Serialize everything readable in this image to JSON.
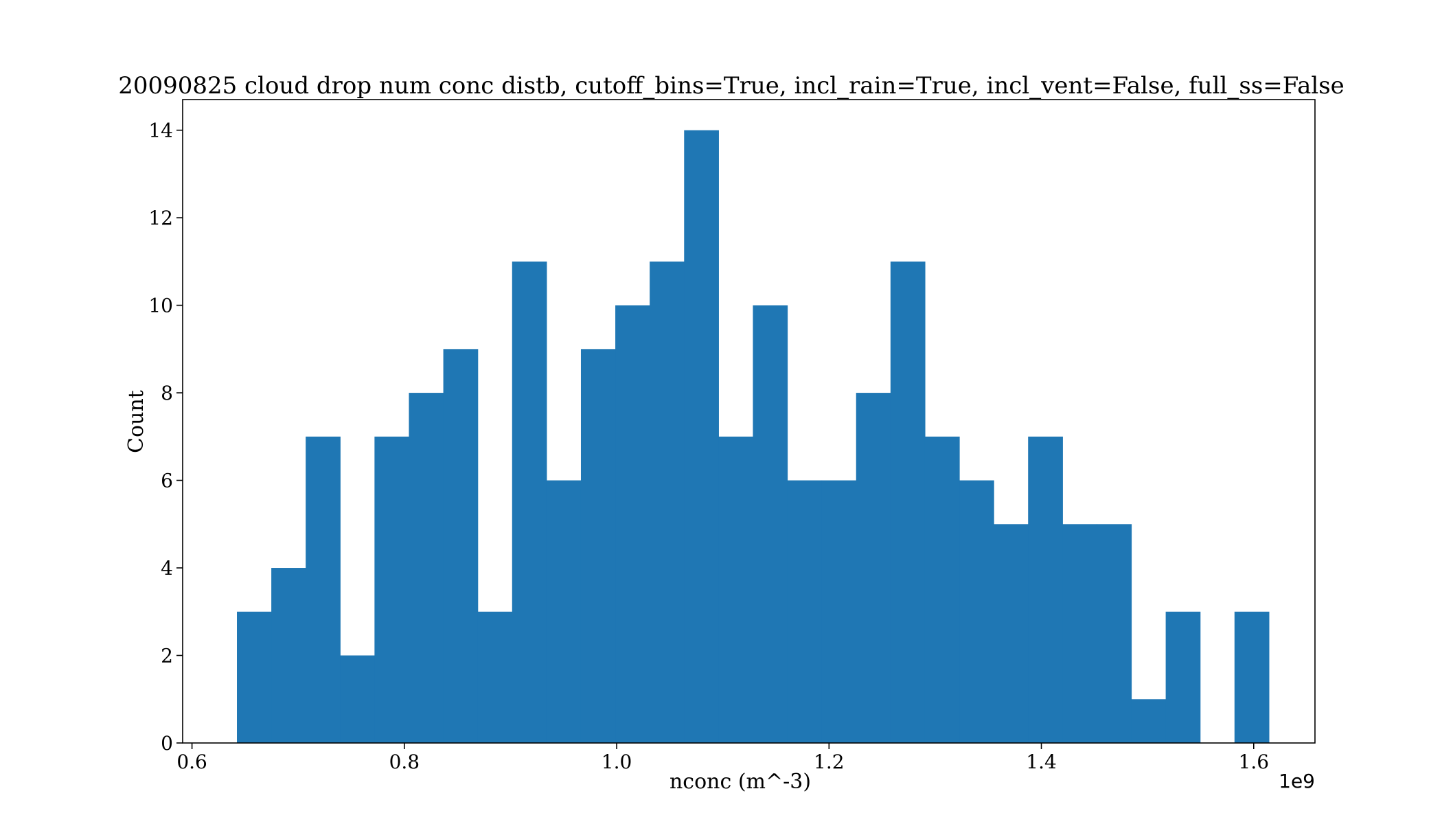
{
  "chart_data": {
    "type": "bar",
    "title": "20090825 cloud drop num conc distb, cutoff_bins=True, incl_rain=True, incl_vent=False, full_ss=False",
    "xlabel": "nconc (m^-3)",
    "ylabel": "Count",
    "x_offset_label": "1e9",
    "bar_color": "#1f77b4",
    "bin_start": 0.6423,
    "bin_width": 0.0324,
    "values": [
      3,
      4,
      7,
      2,
      7,
      8,
      9,
      3,
      11,
      6,
      9,
      10,
      11,
      14,
      7,
      10,
      6,
      6,
      8,
      11,
      7,
      6,
      5,
      7,
      5,
      5,
      1,
      3,
      0,
      3
    ],
    "xlim": [
      0.5912,
      1.6577
    ],
    "ylim": [
      0,
      14.7
    ],
    "xticks": [
      0.6,
      0.8,
      1.0,
      1.2,
      1.4,
      1.6
    ],
    "xtick_labels": [
      "0.6",
      "0.8",
      "1.0",
      "1.2",
      "1.4",
      "1.6"
    ],
    "yticks": [
      0,
      2,
      4,
      6,
      8,
      10,
      12,
      14
    ],
    "ytick_labels": [
      "0",
      "2",
      "4",
      "6",
      "8",
      "10",
      "12",
      "14"
    ],
    "grid": false,
    "legend": false
  }
}
